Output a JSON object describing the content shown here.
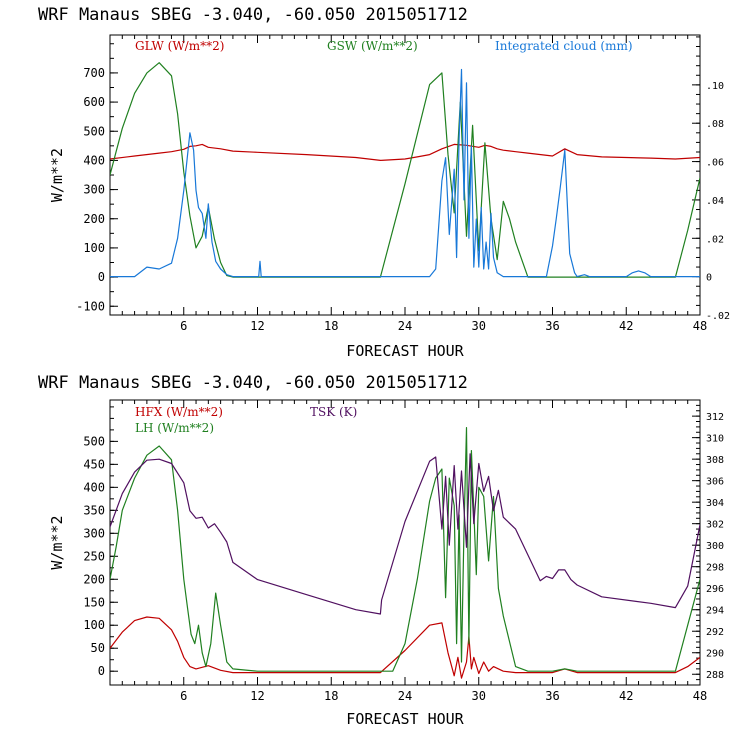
{
  "chart_data": [
    {
      "type": "line",
      "title": "WRF   Manaus SBEG   -3.040, -60.050  2015051712",
      "xlabel": "FORECAST HOUR",
      "ylabel": "W/m**2",
      "xlim": [
        0,
        48
      ],
      "ylim": [
        -130,
        830
      ],
      "xticks": [
        "6",
        "12",
        "18",
        "24",
        "30",
        "36",
        "42",
        "48"
      ],
      "yticks": [
        "-100",
        "0",
        "100",
        "200",
        "300",
        "400",
        "500",
        "600",
        "700"
      ],
      "y2lim": [
        -0.02,
        0.126
      ],
      "y2ticks": [
        "-.02",
        "0",
        ".02",
        ".04",
        ".06",
        ".08",
        ".10"
      ],
      "legend": [
        "GLW (W/m**2)",
        "GSW (W/m**2)",
        "Integrated cloud (mm)"
      ],
      "series": [
        {
          "name": "GLW (W/m**2)",
          "color": "#c00000",
          "axis": "left",
          "x": [
            0,
            2,
            4,
            5,
            6,
            6.5,
            7,
            7.5,
            8,
            9,
            10,
            12,
            16,
            20,
            22,
            24,
            25,
            26,
            27,
            28,
            29,
            30,
            30.5,
            31,
            31.5,
            32,
            33,
            34,
            36,
            37,
            37.5,
            38,
            40,
            44,
            46,
            48
          ],
          "y": [
            405,
            415,
            425,
            430,
            438,
            448,
            450,
            455,
            445,
            440,
            432,
            428,
            420,
            410,
            400,
            405,
            412,
            420,
            440,
            455,
            452,
            445,
            452,
            448,
            440,
            435,
            430,
            425,
            415,
            440,
            430,
            420,
            412,
            408,
            405,
            410
          ]
        },
        {
          "name": "GSW (W/m**2)",
          "color": "#208020",
          "axis": "left",
          "x": [
            0,
            0.5,
            1,
            2,
            3,
            4,
            5,
            5.5,
            6,
            6.5,
            7,
            7.5,
            8,
            8.5,
            9,
            9.5,
            10,
            12,
            22,
            24,
            26,
            27,
            27.5,
            28,
            28.5,
            29,
            29.5,
            30,
            30.5,
            31,
            31.5,
            32,
            32.5,
            33,
            34,
            36,
            38,
            46,
            47,
            48
          ],
          "y": [
            350,
            430,
            510,
            630,
            700,
            735,
            690,
            560,
            360,
            210,
            100,
            140,
            240,
            130,
            50,
            5,
            0,
            0,
            0,
            320,
            660,
            700,
            420,
            220,
            600,
            140,
            520,
            90,
            460,
            200,
            60,
            260,
            200,
            120,
            0,
            0,
            0,
            0,
            160,
            340
          ]
        },
        {
          "name": "Integrated cloud (mm)",
          "color": "#1878d8",
          "axis": "right",
          "x": [
            0,
            2,
            3,
            4,
            5,
            5.5,
            6,
            6.5,
            6.8,
            7,
            7.2,
            7.5,
            7.8,
            8,
            8.3,
            8.6,
            9,
            9.5,
            10,
            12.1,
            12.2,
            12.3,
            26,
            26.5,
            27,
            27.3,
            27.6,
            28,
            28.2,
            28.4,
            28.6,
            28.8,
            29,
            29.2,
            29.4,
            29.6,
            29.8,
            30,
            30.2,
            30.4,
            30.6,
            30.8,
            31,
            31.2,
            31.5,
            32,
            35.5,
            36,
            36.3,
            36.6,
            37,
            37.2,
            37.4,
            37.8,
            38,
            38.6,
            39,
            42,
            42.5,
            43,
            43.5,
            44,
            48
          ],
          "y": [
            0,
            0,
            0.005,
            0.004,
            0.007,
            0.02,
            0.045,
            0.075,
            0.066,
            0.045,
            0.036,
            0.033,
            0.02,
            0.038,
            0.018,
            0.008,
            0.004,
            0.001,
            0,
            0,
            0.008,
            0,
            0,
            0.004,
            0.05,
            0.062,
            0.022,
            0.056,
            0.01,
            0.072,
            0.108,
            0.04,
            0.101,
            0.02,
            0.068,
            0.005,
            0.03,
            0.005,
            0.036,
            0.004,
            0.018,
            0.004,
            0.033,
            0.01,
            0.002,
            0,
            0,
            0.016,
            0.03,
            0.045,
            0.066,
            0.038,
            0.012,
            0.002,
            0,
            0.001,
            0,
            0,
            0.002,
            0.003,
            0.002,
            0,
            0
          ]
        }
      ]
    },
    {
      "type": "line",
      "title": "WRF   Manaus SBEG   -3.040, -60.050  2015051712",
      "xlabel": "FORECAST HOUR",
      "ylabel": "W/m**2",
      "xlim": [
        0,
        48
      ],
      "ylim": [
        -30,
        590
      ],
      "xticks": [
        "6",
        "12",
        "18",
        "24",
        "30",
        "36",
        "42",
        "48"
      ],
      "yticks": [
        "0",
        "50",
        "100",
        "150",
        "200",
        "250",
        "300",
        "350",
        "400",
        "450",
        "500"
      ],
      "y2lim": [
        287,
        313.5
      ],
      "y2ticks": [
        "288",
        "290",
        "292",
        "294",
        "296",
        "298",
        "300",
        "302",
        "304",
        "306",
        "308",
        "310",
        "312"
      ],
      "legend": [
        "HFX (W/m**2)",
        "LH  (W/m**2)",
        "TSK (K)"
      ],
      "series": [
        {
          "name": "HFX (W/m**2)",
          "color": "#c00000",
          "axis": "left",
          "x": [
            0,
            1,
            2,
            3,
            4,
            5,
            5.5,
            6,
            6.5,
            7,
            8,
            9,
            10,
            12,
            16,
            20,
            22,
            24,
            26,
            27,
            27.5,
            28,
            28.3,
            28.6,
            29,
            29.2,
            29.4,
            29.6,
            30,
            30.4,
            30.8,
            31.2,
            32,
            33,
            34,
            36,
            37,
            38,
            40,
            44,
            46,
            47,
            48
          ],
          "y": [
            50,
            85,
            110,
            118,
            115,
            90,
            65,
            30,
            10,
            5,
            12,
            2,
            -3,
            -3,
            -3,
            -3,
            -3,
            45,
            100,
            105,
            40,
            -10,
            30,
            -15,
            20,
            75,
            5,
            30,
            -5,
            20,
            0,
            10,
            0,
            -3,
            -3,
            -3,
            5,
            -3,
            -3,
            -3,
            -3,
            10,
            30
          ]
        },
        {
          "name": "LH  (W/m**2)",
          "color": "#208020",
          "axis": "left",
          "x": [
            0,
            0.5,
            1,
            2,
            3,
            4,
            5,
            5.5,
            6,
            6.3,
            6.6,
            6.9,
            7.2,
            7.5,
            7.8,
            8.2,
            8.6,
            9,
            9.5,
            10,
            12,
            16,
            20,
            22,
            23,
            24,
            25,
            26,
            26.5,
            27,
            27.3,
            27.6,
            28,
            28.2,
            28.4,
            28.6,
            28.8,
            29,
            29.2,
            29.4,
            29.6,
            29.8,
            30,
            30.4,
            30.8,
            31.2,
            31.6,
            32,
            33,
            34,
            36,
            37,
            38,
            40,
            44,
            46,
            47,
            48
          ],
          "y": [
            200,
            270,
            350,
            420,
            470,
            490,
            460,
            350,
            200,
            140,
            80,
            60,
            100,
            40,
            10,
            60,
            170,
            100,
            20,
            5,
            0,
            0,
            0,
            0,
            0,
            60,
            200,
            370,
            420,
            440,
            160,
            420,
            360,
            60,
            340,
            20,
            310,
            530,
            60,
            480,
            350,
            210,
            400,
            380,
            240,
            380,
            180,
            120,
            10,
            0,
            0,
            5,
            0,
            0,
            0,
            0,
            100,
            200
          ]
        },
        {
          "name": "TSK (K)",
          "color": "#501060",
          "axis": "right",
          "x": [
            0,
            1,
            2,
            3,
            4,
            5,
            6,
            6.5,
            7,
            7.5,
            8,
            8.5,
            9,
            9.5,
            10,
            12,
            16,
            20,
            22,
            22.1,
            24,
            26,
            26.5,
            27,
            27.3,
            27.6,
            28,
            28.3,
            28.6,
            29,
            29.3,
            29.6,
            30,
            30.4,
            30.8,
            31.2,
            31.6,
            32,
            33,
            35,
            35.5,
            36,
            36.5,
            37,
            37.5,
            38,
            40,
            44,
            46,
            47,
            48
          ],
          "y": [
            301.7,
            304.8,
            306.8,
            307.9,
            308,
            307.6,
            305.8,
            303.2,
            302.5,
            302.6,
            301.6,
            302,
            301.2,
            300.3,
            298.4,
            296.8,
            295.4,
            294,
            293.6,
            294.9,
            302.2,
            307.8,
            308.2,
            301.5,
            306.4,
            300,
            307.4,
            301.5,
            306.9,
            299.8,
            308.5,
            302,
            307.6,
            305,
            306.4,
            303.2,
            305.1,
            302.6,
            301.5,
            296.7,
            297.1,
            296.9,
            297.7,
            297.7,
            296.8,
            296.3,
            295.2,
            294.6,
            294.2,
            296.2,
            301.9
          ]
        }
      ]
    }
  ]
}
